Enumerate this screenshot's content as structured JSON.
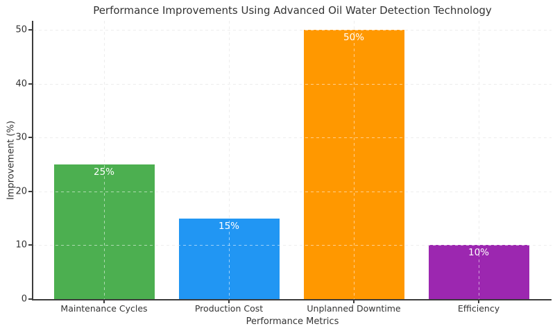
{
  "chart_data": {
    "type": "bar",
    "title": "Performance Improvements Using Advanced Oil Water Detection Technology",
    "xlabel": "Performance Metrics",
    "ylabel": "Improvement (%)",
    "categories": [
      "Maintenance Cycles",
      "Production Cost",
      "Unplanned Downtime",
      "Efficiency"
    ],
    "values": [
      25,
      15,
      50,
      10
    ],
    "bar_labels": [
      "25%",
      "15%",
      "50%",
      "10%"
    ],
    "bar_colors": [
      "#4caf50",
      "#2196f3",
      "#ff9800",
      "#9c27b0"
    ],
    "bar_label_color": "#ffffff",
    "yticks": [
      0,
      10,
      20,
      30,
      40,
      50
    ],
    "ylim": [
      0,
      50
    ],
    "grid": "dashed, horizontal and vertical, light gray, visible over bars",
    "legend_position": "none",
    "background_color": "#ffffff",
    "spine_color": "#3b3b3b",
    "text_color": "#333333"
  }
}
